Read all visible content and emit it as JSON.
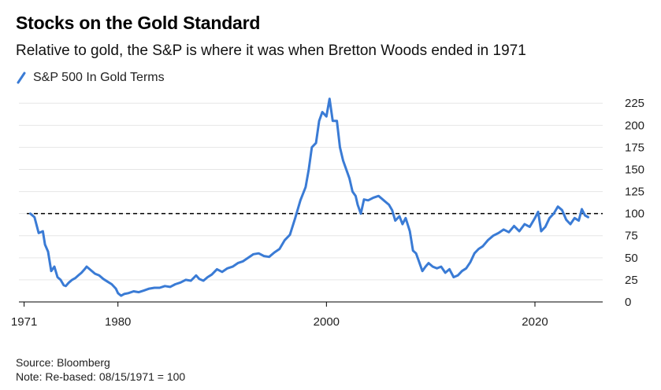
{
  "header": {
    "title": "Stocks on the Gold Standard",
    "subtitle": "Relative to gold, the S&P is where it was when Bretton Woods ended in 1971"
  },
  "footer": {
    "source": "Source: Bloomberg",
    "note": "Note: Re-based: 08/15/1971 = 100"
  },
  "colors": {
    "series": "#3a7bd5",
    "reference": "#000000",
    "grid": "#e6e6e6"
  },
  "chart_data": {
    "type": "line",
    "title": "Stocks on the Gold Standard",
    "subtitle": "Relative to gold, the S&P is where it was when Bretton Woods ended in 1971",
    "xlabel": "",
    "ylabel": "",
    "xlim": [
      1970.5,
      2026.5
    ],
    "ylim": [
      0,
      235
    ],
    "x_ticks": [
      1971,
      1980,
      2000,
      2020
    ],
    "y_ticks": [
      0,
      25,
      50,
      75,
      100,
      125,
      150,
      175,
      200,
      225
    ],
    "y_axis_position": "right",
    "grid": true,
    "legend": "top-left",
    "reference_line": {
      "y": 100,
      "style": "dashed"
    },
    "series": [
      {
        "name": "S&P 500 In Gold Terms",
        "x": [
          1971.6,
          1972.0,
          1972.4,
          1972.8,
          1973.0,
          1973.3,
          1973.6,
          1973.9,
          1974.2,
          1974.5,
          1974.8,
          1975.0,
          1975.3,
          1975.6,
          1975.9,
          1976.2,
          1976.5,
          1976.8,
          1977.0,
          1977.4,
          1977.8,
          1978.2,
          1978.6,
          1979.0,
          1979.4,
          1979.8,
          1980.0,
          1980.3,
          1980.6,
          1981.0,
          1981.5,
          1982.0,
          1982.5,
          1983.0,
          1983.5,
          1984.0,
          1984.5,
          1985.0,
          1985.5,
          1986.0,
          1986.5,
          1987.0,
          1987.5,
          1987.8,
          1988.2,
          1988.6,
          1989.0,
          1989.5,
          1990.0,
          1990.5,
          1991.0,
          1991.5,
          1992.0,
          1992.5,
          1993.0,
          1993.5,
          1994.0,
          1994.5,
          1995.0,
          1995.5,
          1996.0,
          1996.5,
          1997.0,
          1997.5,
          1998.0,
          1998.3,
          1998.6,
          1999.0,
          1999.3,
          1999.6,
          2000.0,
          2000.3,
          2000.6,
          2001.0,
          2001.3,
          2001.6,
          2001.9,
          2002.2,
          2002.5,
          2002.8,
          2003.0,
          2003.3,
          2003.6,
          2004.0,
          2004.5,
          2005.0,
          2005.5,
          2006.0,
          2006.3,
          2006.6,
          2007.0,
          2007.3,
          2007.6,
          2008.0,
          2008.3,
          2008.6,
          2008.9,
          2009.2,
          2009.5,
          2009.8,
          2010.2,
          2010.6,
          2011.0,
          2011.4,
          2011.8,
          2012.2,
          2012.6,
          2013.0,
          2013.4,
          2013.8,
          2014.2,
          2014.6,
          2015.0,
          2015.5,
          2016.0,
          2016.5,
          2017.0,
          2017.5,
          2018.0,
          2018.5,
          2019.0,
          2019.5,
          2020.0,
          2020.3,
          2020.6,
          2021.0,
          2021.4,
          2021.8,
          2022.2,
          2022.6,
          2023.0,
          2023.4,
          2023.8,
          2024.2,
          2024.5,
          2024.8,
          2025.1
        ],
        "values": [
          100,
          96,
          78,
          80,
          65,
          57,
          35,
          40,
          28,
          25,
          19,
          18,
          22,
          25,
          27,
          30,
          33,
          37,
          40,
          36,
          32,
          30,
          26,
          23,
          20,
          15,
          10,
          7,
          9,
          10,
          12,
          11,
          13,
          15,
          16,
          16,
          18,
          17,
          20,
          22,
          25,
          24,
          30,
          26,
          24,
          28,
          31,
          37,
          34,
          38,
          40,
          44,
          46,
          50,
          54,
          55,
          52,
          51,
          56,
          60,
          70,
          76,
          95,
          115,
          130,
          150,
          175,
          180,
          205,
          215,
          210,
          230,
          205,
          205,
          175,
          160,
          150,
          140,
          125,
          120,
          110,
          100,
          116,
          115,
          118,
          120,
          115,
          110,
          104,
          92,
          97,
          88,
          95,
          80,
          58,
          55,
          45,
          35,
          40,
          44,
          40,
          38,
          40,
          33,
          37,
          28,
          30,
          35,
          38,
          45,
          55,
          60,
          63,
          70,
          75,
          78,
          82,
          79,
          86,
          80,
          88,
          85,
          95,
          102,
          80,
          85,
          95,
          100,
          108,
          104,
          93,
          88,
          95,
          92,
          105,
          98,
          96
        ]
      }
    ]
  }
}
